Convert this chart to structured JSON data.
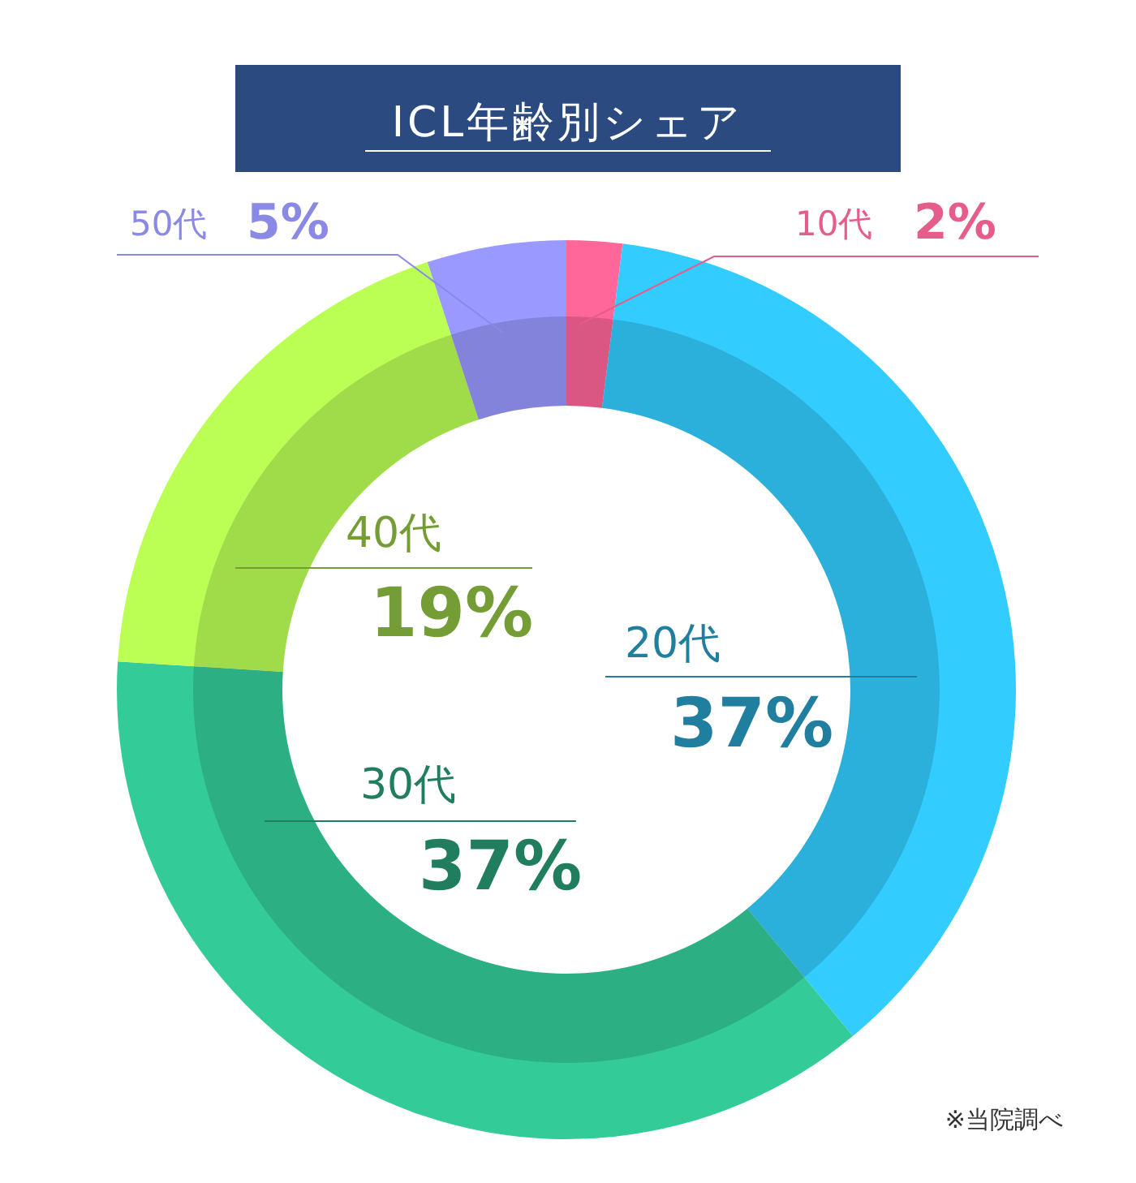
{
  "chart_data": {
    "type": "donut",
    "title": "ICL年齢別シェア",
    "categories": [
      "10代",
      "20代",
      "30代",
      "40代",
      "50代"
    ],
    "values": [
      2,
      37,
      37,
      19,
      5
    ],
    "colors": [
      "#ff6699",
      "#33ccff",
      "#33cc99",
      "#bbff55",
      "#9999ff"
    ],
    "value_labels": [
      "2%",
      "37%",
      "37%",
      "19%",
      "5%"
    ],
    "annotations": [
      "※当院調べ"
    ]
  }
}
